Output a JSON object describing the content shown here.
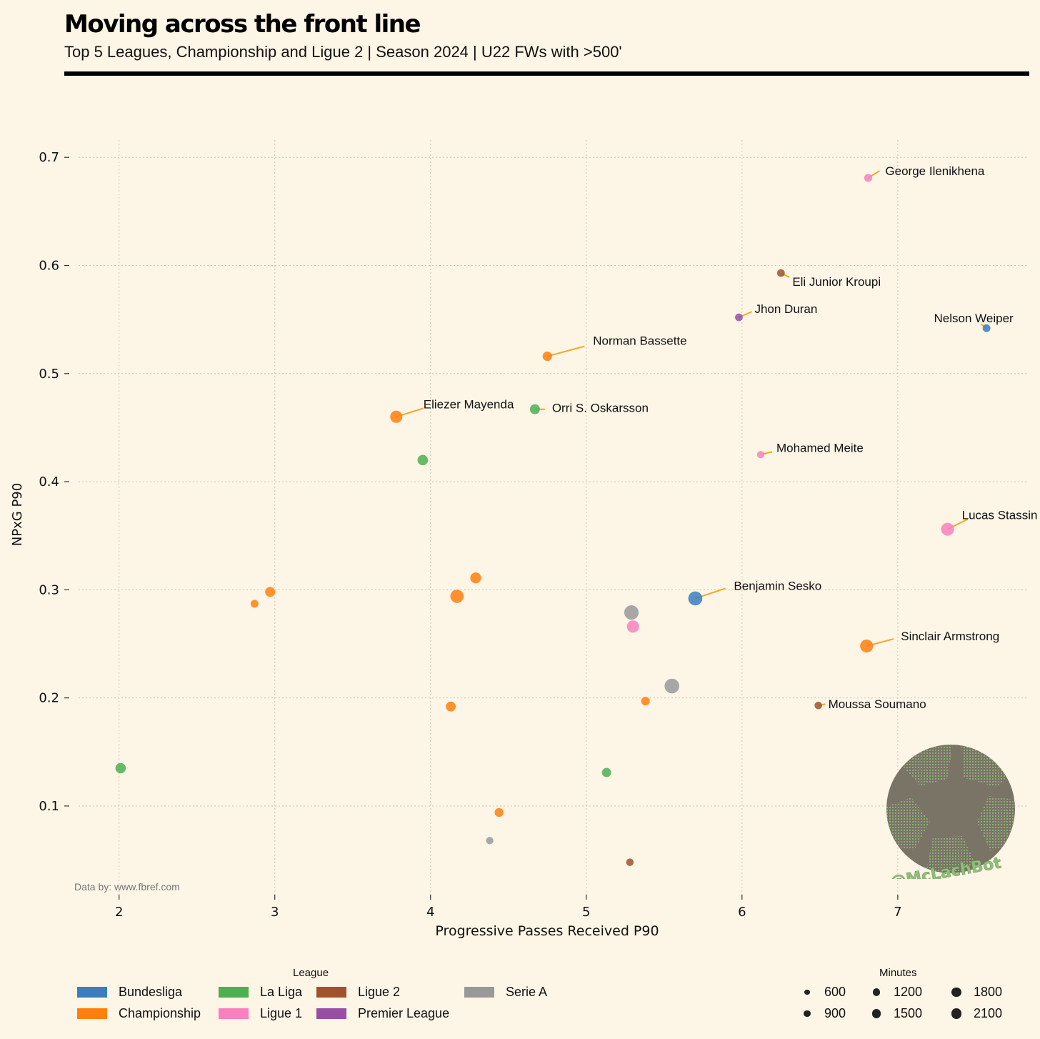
{
  "title": "Moving across the front line",
  "subtitle": "Top 5 Leagues, Championship and Ligue 2 | Season 2024 | U22 FWs with >500'",
  "credit": "Data by: www.fbref.com",
  "watermark": "@McLachBot",
  "chart_data": {
    "type": "scatter",
    "xlabel": "Progressive Passes Received P90",
    "ylabel": "NPxG P90",
    "xlim": [
      1.74,
      7.84
    ],
    "ylim": [
      0.018,
      0.716
    ],
    "xticks": [
      "2",
      "3",
      "4",
      "5",
      "6",
      "7"
    ],
    "yticks": [
      "0.1",
      "0.2",
      "0.3",
      "0.4",
      "0.5",
      "0.6",
      "0.7"
    ],
    "grid": true,
    "league_colors": {
      "Bundesliga": "#3a7ebf",
      "Championship": "#ff7f0e",
      "La Liga": "#4caf50",
      "Ligue 2": "#a0522d",
      "Ligue 1": "#f781bf",
      "Premier League": "#984ea3",
      "Serie A": "#999999"
    },
    "annotation_line_color": "#f5a623",
    "legend_league_title": "League",
    "legend_leagues": [
      "Bundesliga",
      "Championship",
      "La Liga",
      "Ligue 1",
      "Ligue 2",
      "Premier League",
      "Serie A"
    ],
    "legend_size_title": "Minutes",
    "legend_sizes": [
      "600",
      "900",
      "1200",
      "1500",
      "1800",
      "2100"
    ],
    "points": [
      {
        "x": 6.81,
        "y": 0.681,
        "league": "Ligue 1",
        "minutes": 650,
        "label": "George Ilenikhena"
      },
      {
        "x": 6.25,
        "y": 0.593,
        "league": "Ligue 2",
        "minutes": 600,
        "label": "Eli Junior Kroupi"
      },
      {
        "x": 5.98,
        "y": 0.552,
        "league": "Premier League",
        "minutes": 600,
        "label": "Jhon Duran"
      },
      {
        "x": 7.57,
        "y": 0.542,
        "league": "Bundesliga",
        "minutes": 620,
        "label": "Nelson Weiper"
      },
      {
        "x": 4.75,
        "y": 0.516,
        "league": "Championship",
        "minutes": 900,
        "label": "Norman Bassette"
      },
      {
        "x": 3.78,
        "y": 0.46,
        "league": "Championship",
        "minutes": 1500,
        "label": "Eliezer Mayenda"
      },
      {
        "x": 4.67,
        "y": 0.467,
        "league": "La Liga",
        "minutes": 1000,
        "label": "Orri S. Oskarsson"
      },
      {
        "x": 3.95,
        "y": 0.42,
        "league": "La Liga",
        "minutes": 1100
      },
      {
        "x": 6.12,
        "y": 0.425,
        "league": "Ligue 1",
        "minutes": 550,
        "label": "Mohamed Meite"
      },
      {
        "x": 7.32,
        "y": 0.356,
        "league": "Ligue 1",
        "minutes": 1700,
        "label": "Lucas Stassin"
      },
      {
        "x": 5.7,
        "y": 0.292,
        "league": "Bundesliga",
        "minutes": 2000,
        "label": "Benjamin Sesko"
      },
      {
        "x": 6.8,
        "y": 0.248,
        "league": "Championship",
        "minutes": 1700,
        "label": "Sinclair Armstrong"
      },
      {
        "x": 6.49,
        "y": 0.193,
        "league": "Ligue 2",
        "minutes": 580,
        "label": "Moussa Soumano"
      },
      {
        "x": 2.97,
        "y": 0.298,
        "league": "Championship",
        "minutes": 1000
      },
      {
        "x": 2.87,
        "y": 0.287,
        "league": "Championship",
        "minutes": 620
      },
      {
        "x": 4.29,
        "y": 0.311,
        "league": "Championship",
        "minutes": 1200
      },
      {
        "x": 4.17,
        "y": 0.294,
        "league": "Championship",
        "minutes": 1800
      },
      {
        "x": 5.29,
        "y": 0.279,
        "league": "Serie A",
        "minutes": 2100
      },
      {
        "x": 5.3,
        "y": 0.266,
        "league": "Ligue 1",
        "minutes": 1500
      },
      {
        "x": 5.55,
        "y": 0.211,
        "league": "Serie A",
        "minutes": 2200
      },
      {
        "x": 5.38,
        "y": 0.197,
        "league": "Championship",
        "minutes": 750
      },
      {
        "x": 4.13,
        "y": 0.192,
        "league": "Championship",
        "minutes": 1000
      },
      {
        "x": 2.01,
        "y": 0.135,
        "league": "La Liga",
        "minutes": 1100
      },
      {
        "x": 5.13,
        "y": 0.131,
        "league": "La Liga",
        "minutes": 850
      },
      {
        "x": 4.44,
        "y": 0.094,
        "league": "Championship",
        "minutes": 800
      },
      {
        "x": 4.38,
        "y": 0.068,
        "league": "Serie A",
        "minutes": 550
      },
      {
        "x": 5.28,
        "y": 0.048,
        "league": "Ligue 2",
        "minutes": 570
      }
    ]
  }
}
